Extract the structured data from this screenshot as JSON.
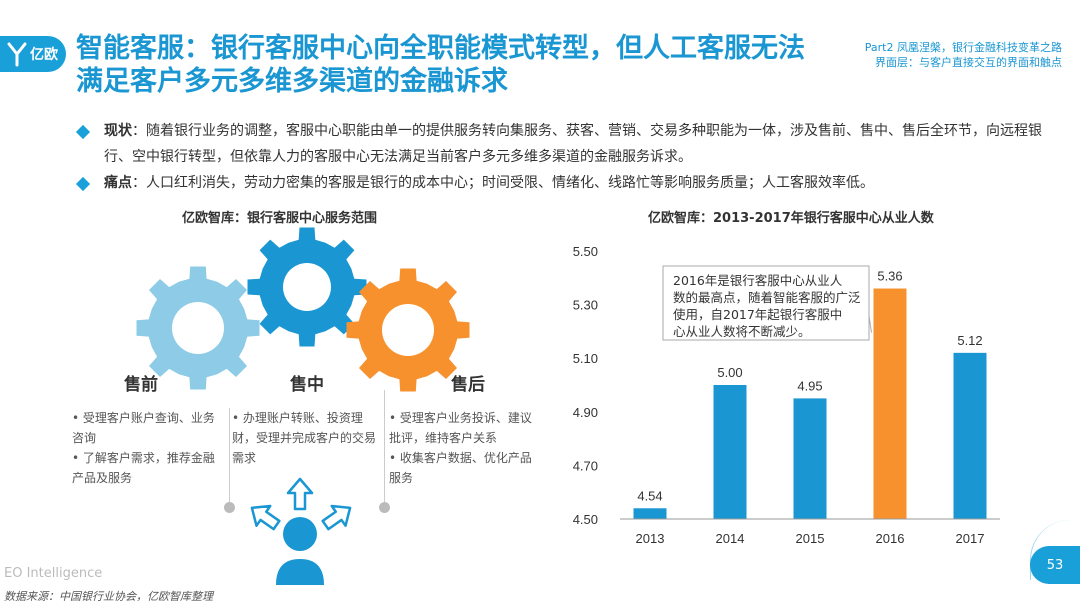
{
  "header": {
    "logo_text": "亿欧",
    "title": "智能客服：银行客服中心向全职能模式转型，但人工客服无法满足客户多元多维多渠道的金融诉求",
    "part_line1": "Part2 凤凰涅槃，银行金融科技变革之路",
    "part_line2": "界面层：与客户直接交互的界面和触点"
  },
  "bullets": [
    {
      "label": "现状",
      "text": "：随着银行业务的调整，客服中心职能由单一的提供服务转向集服务、获客、营销、交易多种职能为一体，涉及售前、售中、售后全环节，向远程银行、空中银行转型，但依靠人力的客服中心无法满足当前客户多元多维多渠道的金融服务诉求。"
    },
    {
      "label": "痛点",
      "text": "：人口红利消失，劳动力密集的客服是银行的成本中心；时间受限、情绪化、线路忙等影响服务质量；人工客服效率低。"
    }
  ],
  "left_panel": {
    "subtitle": "亿欧智库：银行客服中心服务范围",
    "stages": [
      {
        "label": "售前",
        "items": [
          "• 受理客户账户查询、业务咨询",
          "• 了解客户需求，推荐金融产品及服务"
        ]
      },
      {
        "label": "售中",
        "items": [
          "• 办理账户转账、投资理财，受理并完成客户的交易需求"
        ]
      },
      {
        "label": "售后",
        "items": [
          "• 受理客户业务投诉、建议批评，维持客户关系",
          "• 收集客户数据、优化产品服务"
        ]
      }
    ],
    "colors": {
      "pre": "#8dcbe6",
      "mid": "#1a96d2",
      "post": "#f6912e",
      "person": "#1a96d2"
    }
  },
  "chart_data": {
    "type": "bar",
    "title": "亿欧智库：2013-2017年银行客服中心从业人数",
    "categories": [
      "2013",
      "2014",
      "2015",
      "2016",
      "2017"
    ],
    "values": [
      4.54,
      5.0,
      4.95,
      5.36,
      5.12
    ],
    "value_labels": [
      "4.54",
      "5.00",
      "4.95",
      "5.36",
      "5.12"
    ],
    "y_ticks": [
      "4.50",
      "4.70",
      "4.90",
      "5.10",
      "5.30",
      "5.50"
    ],
    "ylim": [
      4.5,
      5.5
    ],
    "highlight_index": 3,
    "colors": {
      "bar": "#1a96d2",
      "highlight": "#f6912e"
    },
    "annotation": "2016年是银行客服中心从业人数的最高点，随着智能客服的广泛使用，自2017年起银行客服中心从业人数将不断减少。",
    "grid": false
  },
  "footer": {
    "brand": "EO Intelligence",
    "source": "数据来源：中国银行业协会，亿欧智库整理",
    "page": "53"
  }
}
